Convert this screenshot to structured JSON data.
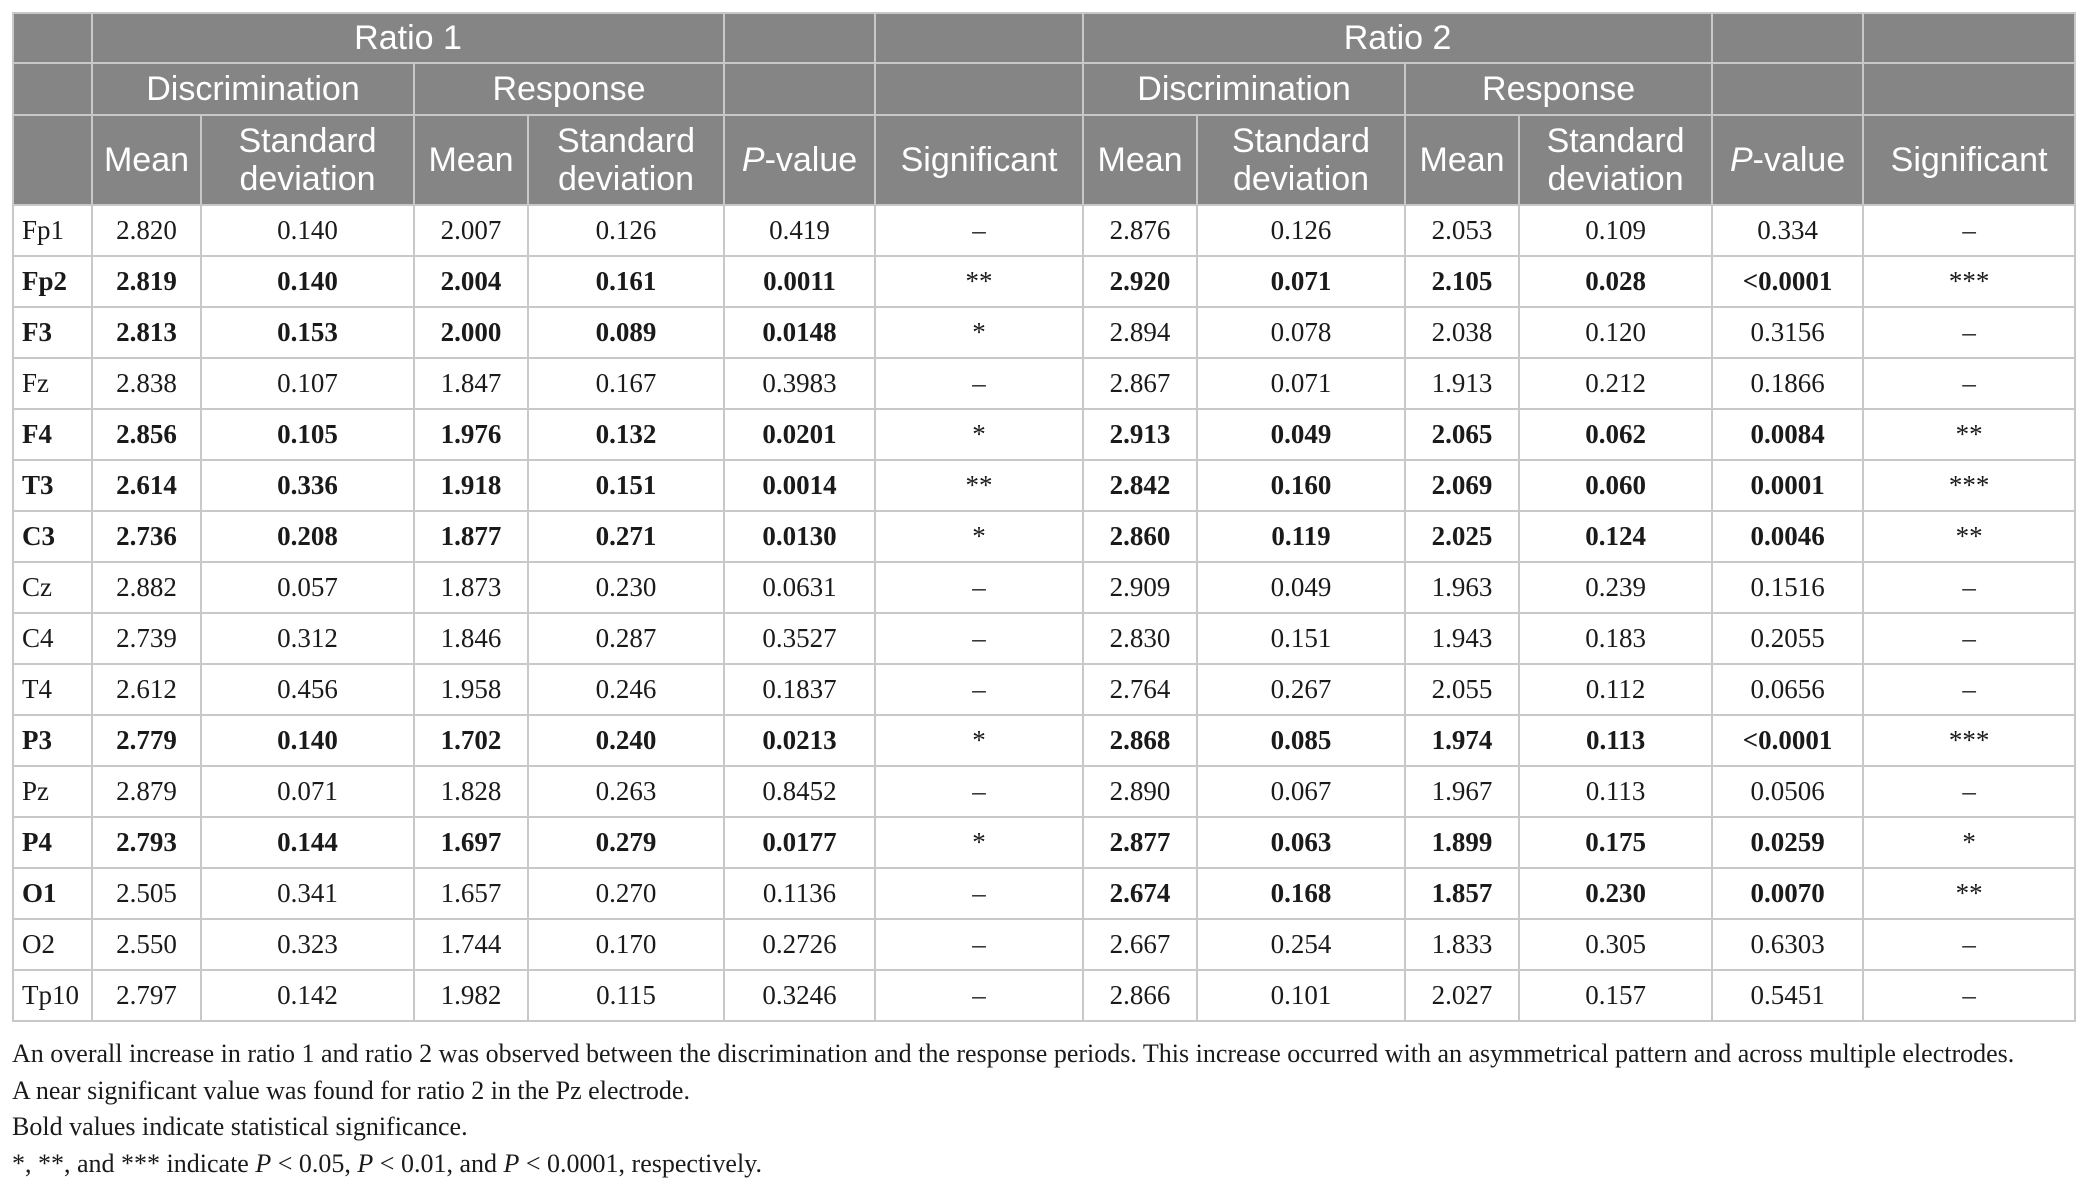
{
  "header": {
    "ratio1": "Ratio 1",
    "ratio2": "Ratio 2",
    "discrimination": "Discrimination",
    "response": "Response",
    "mean": "Mean",
    "sd_line1": "Standard",
    "sd_line2": "deviation",
    "pvalue_italic": "P",
    "pvalue_rest": "-value",
    "significant": "Significant"
  },
  "rows": [
    {
      "electrode": "Fp1",
      "r1": [
        "2.820",
        "0.140",
        "2.007",
        "0.126",
        "0.419",
        "–"
      ],
      "r2": [
        "2.876",
        "0.126",
        "2.053",
        "0.109",
        "0.334",
        "–"
      ],
      "bold1": false,
      "bold2": false
    },
    {
      "electrode": "Fp2",
      "r1": [
        "2.819",
        "0.140",
        "2.004",
        "0.161",
        "0.0011",
        "**"
      ],
      "r2": [
        "2.920",
        "0.071",
        "2.105",
        "0.028",
        "<0.0001",
        "***"
      ],
      "bold1": true,
      "bold2": true
    },
    {
      "electrode": "F3",
      "r1": [
        "2.813",
        "0.153",
        "2.000",
        "0.089",
        "0.0148",
        "*"
      ],
      "r2": [
        "2.894",
        "0.078",
        "2.038",
        "0.120",
        "0.3156",
        "–"
      ],
      "bold1": true,
      "bold2": false
    },
    {
      "electrode": "Fz",
      "r1": [
        "2.838",
        "0.107",
        "1.847",
        "0.167",
        "0.3983",
        "–"
      ],
      "r2": [
        "2.867",
        "0.071",
        "1.913",
        "0.212",
        "0.1866",
        "–"
      ],
      "bold1": false,
      "bold2": false
    },
    {
      "electrode": "F4",
      "r1": [
        "2.856",
        "0.105",
        "1.976",
        "0.132",
        "0.0201",
        "*"
      ],
      "r2": [
        "2.913",
        "0.049",
        "2.065",
        "0.062",
        "0.0084",
        "**"
      ],
      "bold1": true,
      "bold2": true
    },
    {
      "electrode": "T3",
      "r1": [
        "2.614",
        "0.336",
        "1.918",
        "0.151",
        "0.0014",
        "**"
      ],
      "r2": [
        "2.842",
        "0.160",
        "2.069",
        "0.060",
        "0.0001",
        "***"
      ],
      "bold1": true,
      "bold2": true
    },
    {
      "electrode": "C3",
      "r1": [
        "2.736",
        "0.208",
        "1.877",
        "0.271",
        "0.0130",
        "*"
      ],
      "r2": [
        "2.860",
        "0.119",
        "2.025",
        "0.124",
        "0.0046",
        "**"
      ],
      "bold1": true,
      "bold2": true
    },
    {
      "electrode": "Cz",
      "r1": [
        "2.882",
        "0.057",
        "1.873",
        "0.230",
        "0.0631",
        "–"
      ],
      "r2": [
        "2.909",
        "0.049",
        "1.963",
        "0.239",
        "0.1516",
        "–"
      ],
      "bold1": false,
      "bold2": false
    },
    {
      "electrode": "C4",
      "r1": [
        "2.739",
        "0.312",
        "1.846",
        "0.287",
        "0.3527",
        "–"
      ],
      "r2": [
        "2.830",
        "0.151",
        "1.943",
        "0.183",
        "0.2055",
        "–"
      ],
      "bold1": false,
      "bold2": false
    },
    {
      "electrode": "T4",
      "r1": [
        "2.612",
        "0.456",
        "1.958",
        "0.246",
        "0.1837",
        "–"
      ],
      "r2": [
        "2.764",
        "0.267",
        "2.055",
        "0.112",
        "0.0656",
        "–"
      ],
      "bold1": false,
      "bold2": false
    },
    {
      "electrode": "P3",
      "r1": [
        "2.779",
        "0.140",
        "1.702",
        "0.240",
        "0.0213",
        "*"
      ],
      "r2": [
        "2.868",
        "0.085",
        "1.974",
        "0.113",
        "<0.0001",
        "***"
      ],
      "bold1": true,
      "bold2": true
    },
    {
      "electrode": "Pz",
      "r1": [
        "2.879",
        "0.071",
        "1.828",
        "0.263",
        "0.8452",
        "–"
      ],
      "r2": [
        "2.890",
        "0.067",
        "1.967",
        "0.113",
        "0.0506",
        "–"
      ],
      "bold1": false,
      "bold2": false
    },
    {
      "electrode": "P4",
      "r1": [
        "2.793",
        "0.144",
        "1.697",
        "0.279",
        "0.0177",
        "*"
      ],
      "r2": [
        "2.877",
        "0.063",
        "1.899",
        "0.175",
        "0.0259",
        "*"
      ],
      "bold1": true,
      "bold2": true
    },
    {
      "electrode": "O1",
      "r1": [
        "2.505",
        "0.341",
        "1.657",
        "0.270",
        "0.1136",
        "–"
      ],
      "r2": [
        "2.674",
        "0.168",
        "1.857",
        "0.230",
        "0.0070",
        "**"
      ],
      "bold1": false,
      "bold2": true
    },
    {
      "electrode": "O2",
      "r1": [
        "2.550",
        "0.323",
        "1.744",
        "0.170",
        "0.2726",
        "–"
      ],
      "r2": [
        "2.667",
        "0.254",
        "1.833",
        "0.305",
        "0.6303",
        "–"
      ],
      "bold1": false,
      "bold2": false
    },
    {
      "electrode": "Tp10",
      "r1": [
        "2.797",
        "0.142",
        "1.982",
        "0.115",
        "0.3246",
        "–"
      ],
      "r2": [
        "2.866",
        "0.101",
        "2.027",
        "0.157",
        "0.5451",
        "–"
      ],
      "bold1": false,
      "bold2": false
    }
  ],
  "notes": {
    "line1": "An overall increase in ratio 1 and ratio 2 was observed between the discrimination and the response periods. This increase occurred with an asymmetrical pattern and across multiple electrodes.",
    "line2": "A near significant value was found for ratio 2 in the Pz electrode.",
    "line3": "Bold values indicate statistical significance.",
    "line4_a": "*, **, and *** indicate ",
    "line4_p1": "P",
    "line4_b": " < 0.05, ",
    "line4_p2": "P",
    "line4_c": " < 0.01, and ",
    "line4_p3": "P",
    "line4_d": " < 0.0001, respectively."
  }
}
